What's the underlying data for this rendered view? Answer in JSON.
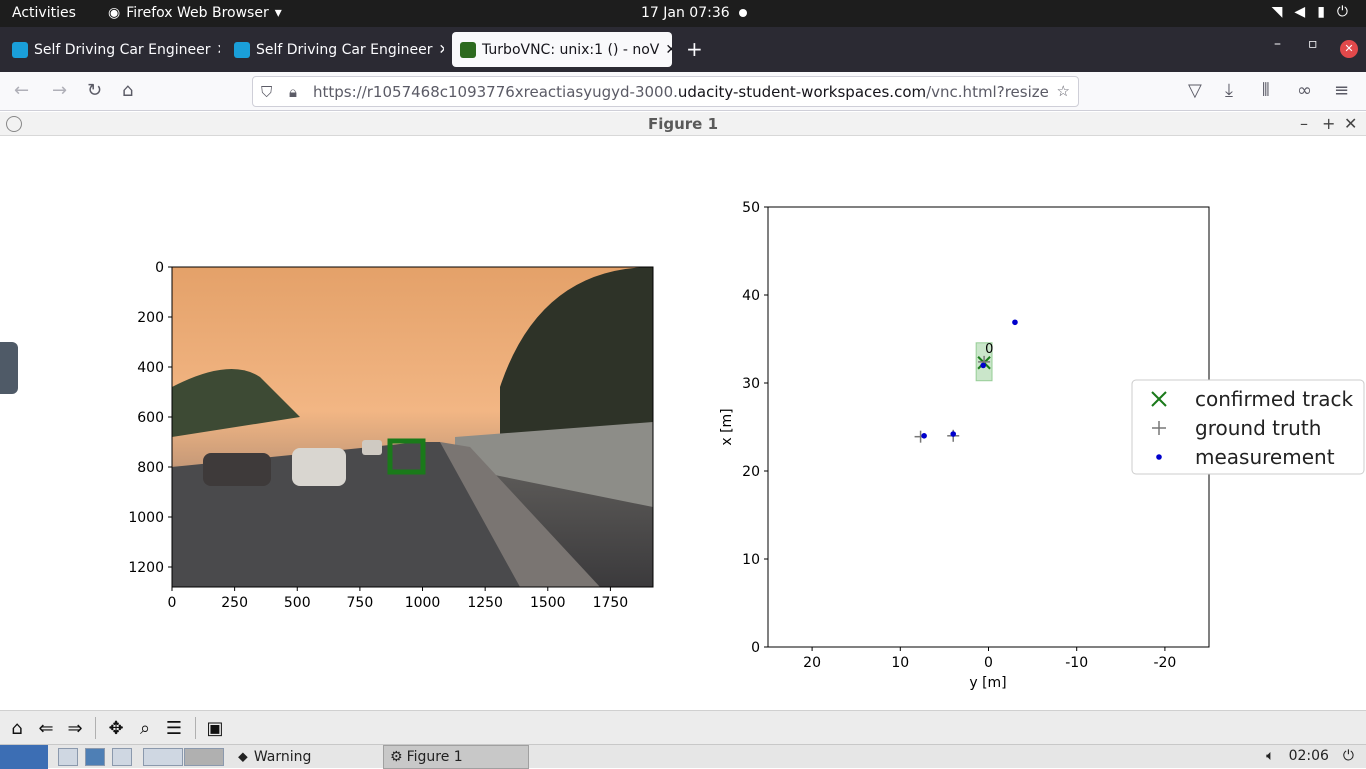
{
  "topbar": {
    "activities": "Activities",
    "app_name": "Firefox Web Browser",
    "clock": "17 Jan  07:36"
  },
  "tabs": [
    {
      "label": "Self Driving Car Engineer",
      "icon_color": "#1a9fd9"
    },
    {
      "label": "Self Driving Car Engineer",
      "icon_color": "#1a9fd9"
    },
    {
      "label": "TurboVNC: unix:1 () - noV",
      "icon_color": "#2d6a1f"
    }
  ],
  "url": {
    "prefix": "https://r1057468c1093776xreactiasyugyd-3000.",
    "host": "udacity-student-workspaces.com",
    "suffix": "/vnc.html?resize=remote"
  },
  "figure": {
    "title": "Figure 1"
  },
  "left_plot": {
    "y_ticks": [
      "0",
      "200",
      "400",
      "600",
      "800",
      "1000",
      "1200"
    ],
    "x_ticks": [
      "0",
      "250",
      "500",
      "750",
      "1000",
      "1250",
      "1500",
      "1750"
    ]
  },
  "chart_data": {
    "type": "scatter",
    "xlabel": "y [m]",
    "ylabel": "x [m]",
    "xlim": [
      25,
      -25
    ],
    "ylim": [
      0,
      50
    ],
    "x_ticks": [
      "20",
      "10",
      "0",
      "-10",
      "-20"
    ],
    "y_ticks": [
      "0",
      "10",
      "20",
      "30",
      "40",
      "50"
    ],
    "track_label": "0",
    "series": [
      {
        "name": "confirmed track",
        "marker": "x",
        "color": "#1a7a1a",
        "points": [
          [
            0.5,
            32.3
          ]
        ]
      },
      {
        "name": "ground truth",
        "marker": "+",
        "color": "#777777",
        "points": [
          [
            7.7,
            23.9
          ],
          [
            4.0,
            24.0
          ],
          [
            0.5,
            32.4
          ]
        ]
      },
      {
        "name": "measurement",
        "marker": "dot",
        "color": "#0000cc",
        "points": [
          [
            7.3,
            24.0
          ],
          [
            4.0,
            24.2
          ],
          [
            0.6,
            32.0
          ],
          [
            -3.0,
            36.9
          ]
        ]
      }
    ],
    "legend_position": "right"
  },
  "toolbar": {
    "buttons": [
      "home-icon",
      "back-icon",
      "forward-icon",
      "pan-icon",
      "zoom-icon",
      "configure-icon",
      "save-icon"
    ]
  },
  "taskbar": {
    "warning": "Warning",
    "figure": "Figure 1",
    "time": "02:06"
  }
}
